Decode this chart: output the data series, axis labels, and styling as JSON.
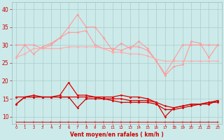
{
  "title": "",
  "xlabel": "Vent moyen/en rafales ( km/h )",
  "x_values": [
    0,
    1,
    2,
    3,
    4,
    5,
    6,
    7,
    8,
    9,
    10,
    11,
    12,
    13,
    14,
    15,
    16,
    17,
    18,
    19,
    20,
    21,
    22,
    23
  ],
  "ylim": [
    8,
    42
  ],
  "xlim": [
    -0.5,
    23.5
  ],
  "background_color": "#cceaea",
  "grid_color": "#aacccc",
  "series": [
    {
      "name": "rafales_top",
      "color": "#ff9999",
      "linewidth": 0.8,
      "marker": "D",
      "markersize": 1.5,
      "values": [
        30.0,
        30.0,
        27.5,
        29.5,
        30.5,
        32.0,
        35.0,
        38.5,
        35.0,
        35.0,
        32.0,
        28.5,
        30.5,
        29.0,
        31.0,
        29.0,
        25.5,
        21.5,
        24.0,
        24.5,
        31.0,
        30.5,
        26.5,
        30.0
      ]
    },
    {
      "name": "rafales_mid1",
      "color": "#ff9999",
      "linewidth": 0.8,
      "marker": "D",
      "markersize": 1.5,
      "values": [
        26.5,
        30.0,
        30.0,
        29.0,
        30.0,
        32.0,
        33.5,
        33.5,
        34.0,
        30.0,
        29.0,
        29.0,
        28.5,
        29.5,
        29.5,
        28.5,
        25.5,
        22.0,
        26.0,
        30.0,
        30.0,
        30.0,
        30.0,
        30.0
      ]
    },
    {
      "name": "rafales_mid2",
      "color": "#ffaaaa",
      "linewidth": 0.8,
      "marker": "D",
      "markersize": 1.5,
      "values": [
        26.5,
        27.5,
        29.0,
        29.0,
        29.0,
        29.0,
        29.5,
        29.5,
        29.5,
        29.5,
        29.0,
        28.0,
        28.0,
        27.5,
        27.5,
        27.0,
        26.0,
        25.5,
        25.5,
        25.5,
        25.5,
        25.5,
        25.5,
        25.5
      ]
    },
    {
      "name": "vent_top",
      "color": "#dd0000",
      "linewidth": 0.9,
      "marker": "D",
      "markersize": 1.5,
      "values": [
        13.5,
        15.5,
        16.0,
        15.5,
        15.5,
        16.0,
        19.5,
        16.0,
        16.0,
        15.5,
        15.5,
        15.5,
        16.0,
        15.5,
        15.5,
        15.0,
        14.0,
        10.0,
        12.5,
        13.0,
        13.5,
        13.5,
        14.0,
        14.5
      ]
    },
    {
      "name": "vent_mid1",
      "color": "#dd0000",
      "linewidth": 0.9,
      "marker": "D",
      "markersize": 1.5,
      "values": [
        15.5,
        15.5,
        15.5,
        15.5,
        15.5,
        15.5,
        15.5,
        15.5,
        15.5,
        15.5,
        15.0,
        15.0,
        15.0,
        14.5,
        14.5,
        14.5,
        14.0,
        13.0,
        12.5,
        13.0,
        13.5,
        13.5,
        14.0,
        14.0
      ]
    },
    {
      "name": "vent_mid2",
      "color": "#cc0000",
      "linewidth": 0.9,
      "marker": "D",
      "markersize": 1.5,
      "values": [
        13.5,
        15.5,
        15.5,
        15.5,
        15.5,
        15.5,
        15.5,
        12.5,
        15.0,
        15.0,
        15.0,
        14.5,
        14.0,
        14.0,
        14.0,
        14.0,
        13.5,
        12.0,
        12.0,
        12.5,
        13.0,
        13.5,
        13.5,
        14.5
      ]
    },
    {
      "name": "wind_arrows",
      "color": "#dd0000",
      "linewidth": 0.7,
      "marker": "4",
      "markersize": 3.0,
      "values": [
        8.5,
        8.5,
        8.5,
        8.5,
        8.5,
        8.5,
        8.5,
        8.5,
        8.5,
        8.5,
        8.5,
        8.5,
        8.5,
        8.5,
        8.5,
        8.5,
        8.5,
        8.5,
        8.5,
        8.5,
        8.5,
        8.5,
        8.5,
        8.5
      ]
    }
  ]
}
